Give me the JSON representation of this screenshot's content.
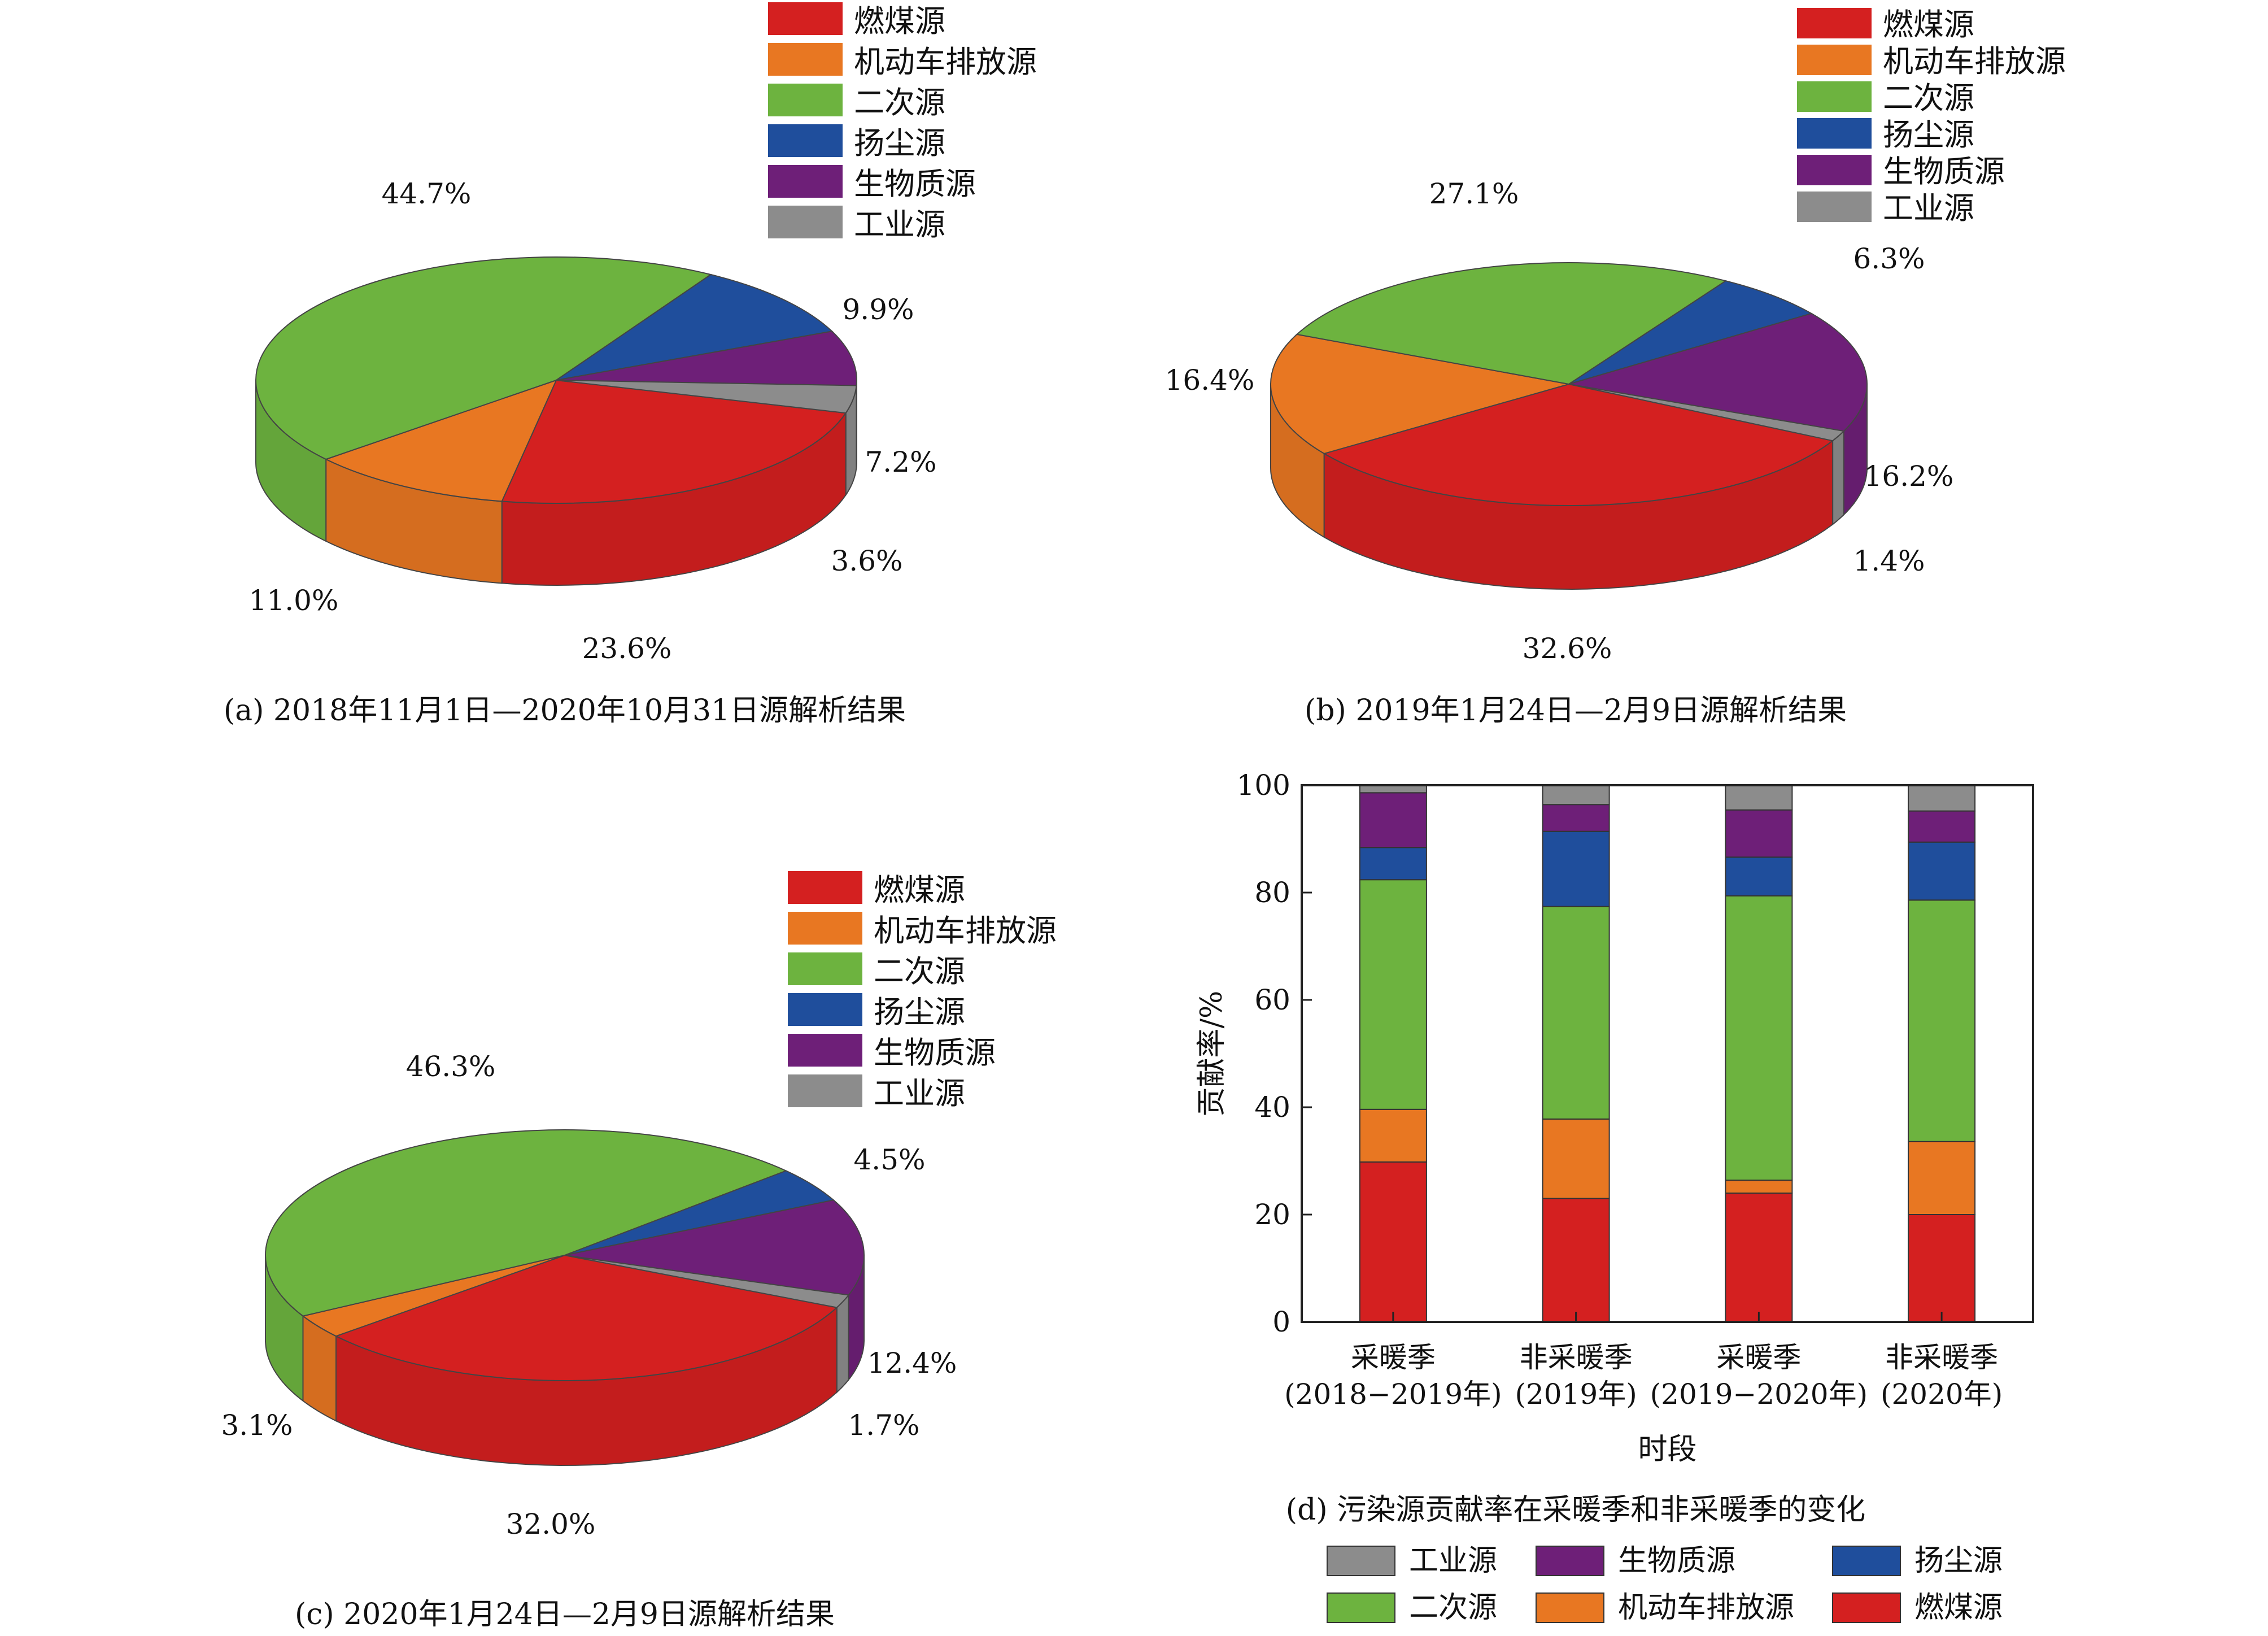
{
  "colors": {
    "燃煤源": "#D42020",
    "机动车排放源": "#E87722",
    "二次源": "#6DB33F",
    "扬尘源": "#1F4E9C",
    "生物质源": "#6E1F78",
    "工业源": "#8C8C8C"
  },
  "legend_order": [
    "燃煤源",
    "机动车排放源",
    "二次源",
    "扬尘源",
    "生物质源",
    "工业源"
  ],
  "chart_data": [
    {
      "type": "pie",
      "panel": "a",
      "caption": "(a) 2018年11月1日—2020年10月31日源解析结果",
      "slices": [
        {
          "name": "燃煤源",
          "value": 23.6,
          "label": "23.6%"
        },
        {
          "name": "机动车排放源",
          "value": 11.0,
          "label": "11.0%"
        },
        {
          "name": "二次源",
          "value": 44.7,
          "label": "44.7%"
        },
        {
          "name": "扬尘源",
          "value": 9.9,
          "label": "9.9%"
        },
        {
          "name": "生物质源",
          "value": 7.2,
          "label": "7.2%"
        },
        {
          "name": "工业源",
          "value": 3.6,
          "label": "3.6%"
        }
      ]
    },
    {
      "type": "pie",
      "panel": "b",
      "caption": "(b) 2019年1月24日—2月9日源解析结果",
      "slices": [
        {
          "name": "燃煤源",
          "value": 32.6,
          "label": "32.6%"
        },
        {
          "name": "机动车排放源",
          "value": 16.4,
          "label": "16.4%"
        },
        {
          "name": "二次源",
          "value": 27.1,
          "label": "27.1%"
        },
        {
          "name": "扬尘源",
          "value": 6.3,
          "label": "6.3%"
        },
        {
          "name": "生物质源",
          "value": 16.2,
          "label": "16.2%"
        },
        {
          "name": "工业源",
          "value": 1.4,
          "label": "1.4%"
        }
      ]
    },
    {
      "type": "pie",
      "panel": "c",
      "caption": "(c) 2020年1月24日—2月9日源解析结果",
      "slices": [
        {
          "name": "燃煤源",
          "value": 32.0,
          "label": "32.0%"
        },
        {
          "name": "机动车排放源",
          "value": 3.1,
          "label": "3.1%"
        },
        {
          "name": "二次源",
          "value": 46.3,
          "label": "46.3%"
        },
        {
          "name": "扬尘源",
          "value": 4.5,
          "label": "4.5%"
        },
        {
          "name": "生物质源",
          "value": 12.4,
          "label": "12.4%"
        },
        {
          "name": "工业源",
          "value": 1.7,
          "label": "1.7%"
        }
      ]
    },
    {
      "type": "bar",
      "stacked": true,
      "panel": "d",
      "caption": "(d) 污染源贡献率在采暖季和非采暖季的变化",
      "xlabel": "时段",
      "ylabel": "贡献率/%",
      "ylim": [
        0,
        100
      ],
      "yticks": [
        0,
        20,
        40,
        60,
        80,
        100
      ],
      "categories": [
        [
          "采暖季",
          "(2018−2019年)"
        ],
        [
          "非采暖季",
          "(2019年)"
        ],
        [
          "采暖季",
          "(2019−2020年)"
        ],
        [
          "非采暖季",
          "(2020年)"
        ]
      ],
      "series": [
        {
          "name": "燃煤源",
          "values": [
            29.8,
            23.0,
            24.0,
            20.0
          ]
        },
        {
          "name": "机动车排放源",
          "values": [
            9.8,
            14.8,
            2.4,
            13.6
          ]
        },
        {
          "name": "二次源",
          "values": [
            42.8,
            39.6,
            53.0,
            45.0
          ]
        },
        {
          "name": "扬尘源",
          "values": [
            6.0,
            14.0,
            7.2,
            10.8
          ]
        },
        {
          "name": "生物质源",
          "values": [
            10.2,
            5.0,
            8.8,
            5.8
          ]
        },
        {
          "name": "工业源",
          "values": [
            1.4,
            3.6,
            4.6,
            4.8
          ]
        }
      ],
      "legend": [
        [
          "工业源",
          "生物质源",
          "扬尘源"
        ],
        [
          "二次源",
          "机动车排放源",
          "燃煤源"
        ]
      ]
    }
  ]
}
